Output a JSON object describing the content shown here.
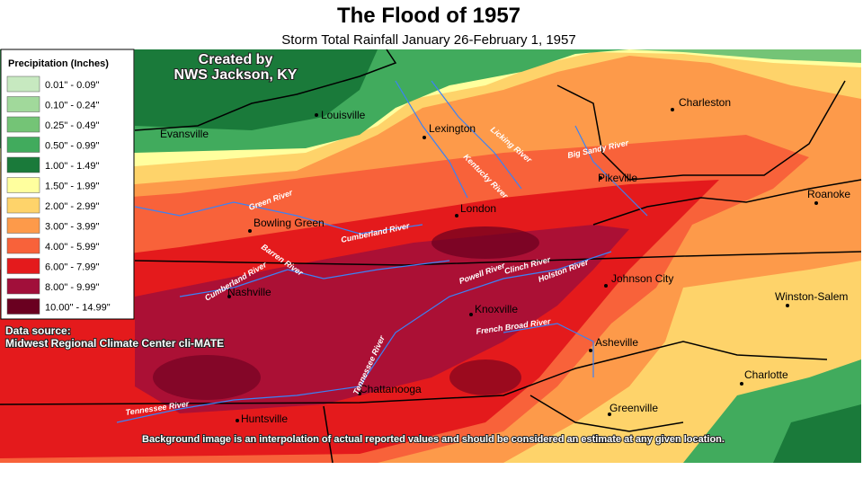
{
  "header": {
    "title": "The Flood of 1957",
    "subtitle": "Storm Total Rainfall   January 26-February 1, 1957"
  },
  "legend": {
    "title": "Precipitation (Inches)",
    "items": [
      {
        "label": "0.01\" - 0.09\"",
        "color": "#c7e9c0"
      },
      {
        "label": "0.10\" - 0.24\"",
        "color": "#a1d99b"
      },
      {
        "label": "0.25\" - 0.49\"",
        "color": "#74c476"
      },
      {
        "label": "0.50\" - 0.99\"",
        "color": "#41ab5d"
      },
      {
        "label": "1.00\" - 1.49\"",
        "color": "#1a7a3a"
      },
      {
        "label": "1.50\" - 1.99\"",
        "color": "#ffff9e"
      },
      {
        "label": "2.00\" - 2.99\"",
        "color": "#fed36a"
      },
      {
        "label": "3.00\" - 3.99\"",
        "color": "#fd9a4a"
      },
      {
        "label": "4.00\" - 5.99\"",
        "color": "#f8623a"
      },
      {
        "label": "6.00\" - 7.99\"",
        "color": "#e41a1c"
      },
      {
        "label": "8.00\" - 9.99\"",
        "color": "#a10f3a"
      },
      {
        "label": "10.00\" - 14.99\"",
        "color": "#6a0020"
      }
    ]
  },
  "credit": {
    "lines": [
      "Created by",
      "NWS Jackson, KY"
    ]
  },
  "data_source": {
    "lines": [
      "Data source:",
      "Midwest Regional Climate Center cli-MATE"
    ]
  },
  "cities": [
    "Louisville",
    "Evansville",
    "Lexington",
    "Charleston",
    "Pikeville",
    "Roanoke",
    "London",
    "Bowling Green",
    "Nashville",
    "Johnson City",
    "Winston-Salem",
    "Knoxville",
    "Asheville",
    "Charlotte",
    "Chattanooga",
    "Huntsville",
    "Greenville"
  ],
  "rivers": [
    "Licking River",
    "Kentucky River",
    "Big Sandy River",
    "Green River",
    "Cumberland River",
    "Barren River",
    "Cumberland River",
    "Powell River",
    "Clinch River",
    "Holston River",
    "French Broad River",
    "Tennessee River",
    "Tennessee River"
  ],
  "footnote": "Background image is an interpolation of actual reported values and should be considered an estimate at any given location."
}
